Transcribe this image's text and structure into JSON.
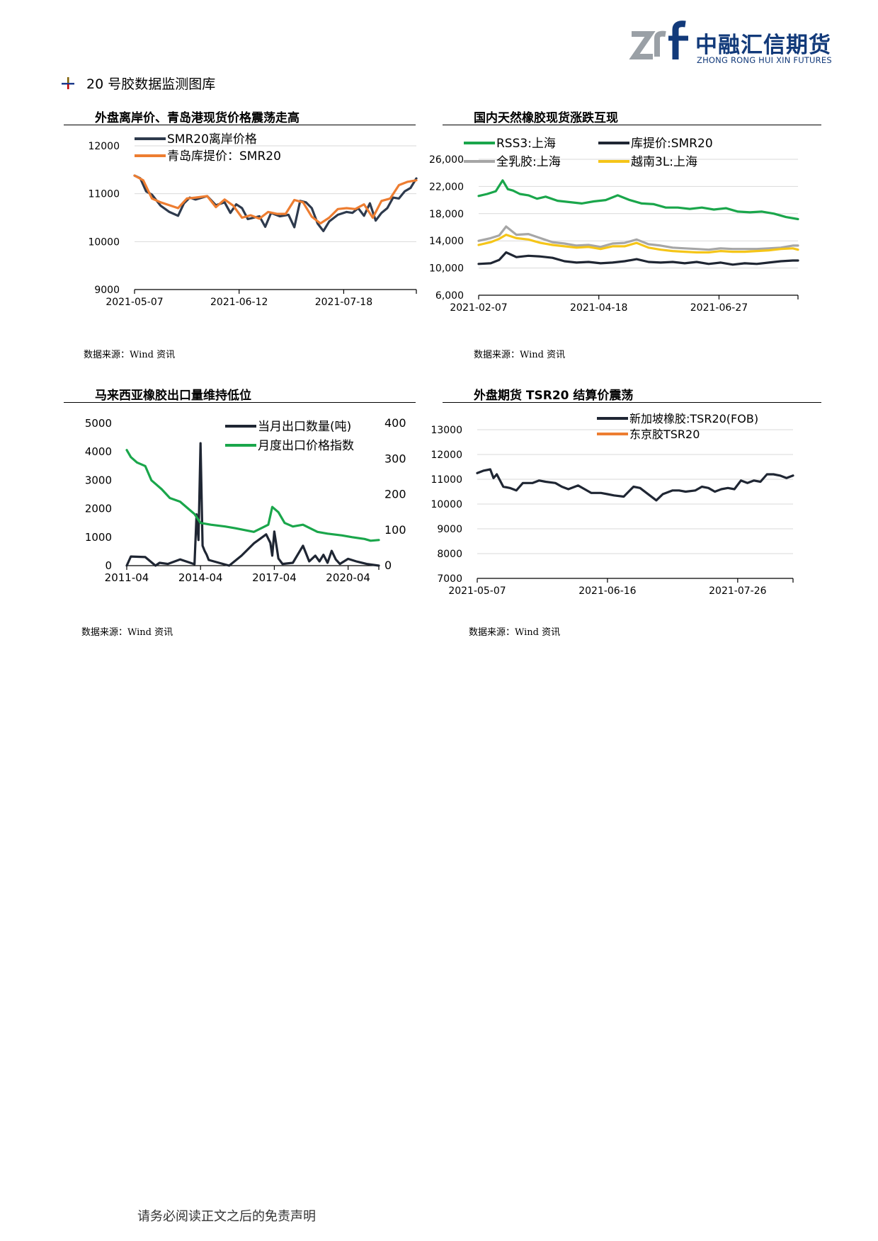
{
  "logo": {
    "mark": "zrf",
    "cn": "中融汇信期货",
    "en": "ZHONG RONG HUI XIN FUTURES"
  },
  "section": {
    "title": "20 号胶数据监测图库"
  },
  "footer": {
    "text": "请务必阅读正文之后的免责声明"
  },
  "panels": [
    {
      "title": "外盘离岸价、青岛港现货价格震荡走高",
      "source": "数据来源：Wind 资讯"
    },
    {
      "title": "国内天然橡胶现货涨跌互现",
      "source": "数据来源：Wind 资讯"
    },
    {
      "title": "马来西亚橡胶出口量维持低位",
      "source": "数据来源：Wind 资讯"
    },
    {
      "title": "外盘期货 TSR20 结算价震荡",
      "source": "数据来源：Wind 资讯"
    }
  ],
  "chart_data": [
    {
      "type": "line",
      "x_ticks": [
        "2021-05-07",
        "2021-06-12",
        "2021-07-18"
      ],
      "x_start": "2021-05-07",
      "x_end": "2021-08-12",
      "ylim": [
        9000,
        12000
      ],
      "y_ticks": [
        9000,
        10000,
        11000,
        12000
      ],
      "grid": true,
      "legend": "top-left",
      "series": [
        {
          "name": "SMR20离岸价格",
          "color": "#2e3a4d",
          "dates": [
            "2021-05-07",
            "2021-05-09",
            "2021-05-11",
            "2021-05-13",
            "2021-05-16",
            "2021-05-19",
            "2021-05-22",
            "2021-05-24",
            "2021-05-26",
            "2021-05-28",
            "2021-06-01",
            "2021-06-04",
            "2021-06-07",
            "2021-06-09",
            "2021-06-11",
            "2021-06-13",
            "2021-06-15",
            "2021-06-17",
            "2021-06-19",
            "2021-06-21",
            "2021-06-23",
            "2021-06-26",
            "2021-06-29",
            "2021-07-01",
            "2021-07-03",
            "2021-07-05",
            "2021-07-07",
            "2021-07-09",
            "2021-07-11",
            "2021-07-13",
            "2021-07-16",
            "2021-07-19",
            "2021-07-21",
            "2021-07-23",
            "2021-07-25",
            "2021-07-27",
            "2021-07-29",
            "2021-07-31",
            "2021-08-02",
            "2021-08-04",
            "2021-08-06",
            "2021-08-08",
            "2021-08-10",
            "2021-08-12"
          ],
          "values": [
            11380,
            11320,
            11050,
            10980,
            10750,
            10620,
            10540,
            10800,
            10920,
            10880,
            10950,
            10760,
            10820,
            10600,
            10780,
            10700,
            10470,
            10500,
            10530,
            10310,
            10600,
            10530,
            10560,
            10300,
            10850,
            10820,
            10700,
            10380,
            10220,
            10420,
            10560,
            10620,
            10600,
            10700,
            10540,
            10800,
            10440,
            10600,
            10700,
            10920,
            10900,
            11050,
            11120,
            11320
          ]
        },
        {
          "name": "青岛库提价：SMR20",
          "color": "#ed7d31",
          "dates": [
            "2021-05-07",
            "2021-05-10",
            "2021-05-13",
            "2021-05-16",
            "2021-05-19",
            "2021-05-22",
            "2021-05-25",
            "2021-05-28",
            "2021-06-01",
            "2021-06-04",
            "2021-06-07",
            "2021-06-10",
            "2021-06-13",
            "2021-06-16",
            "2021-06-19",
            "2021-06-22",
            "2021-06-25",
            "2021-06-28",
            "2021-07-01",
            "2021-07-04",
            "2021-07-07",
            "2021-07-10",
            "2021-07-13",
            "2021-07-16",
            "2021-07-19",
            "2021-07-22",
            "2021-07-25",
            "2021-07-28",
            "2021-07-31",
            "2021-08-03",
            "2021-08-06",
            "2021-08-09",
            "2021-08-12"
          ],
          "values": [
            11380,
            11280,
            10900,
            10820,
            10760,
            10700,
            10900,
            10920,
            10950,
            10720,
            10880,
            10750,
            10500,
            10550,
            10480,
            10620,
            10580,
            10580,
            10870,
            10820,
            10520,
            10380,
            10500,
            10680,
            10700,
            10680,
            10780,
            10500,
            10850,
            10900,
            11180,
            11250,
            11280
          ]
        }
      ]
    },
    {
      "type": "line",
      "x_ticks": [
        "2021-02-07",
        "2021-04-18",
        "2021-06-27"
      ],
      "x_start": "2021-02-07",
      "x_end": "2021-08-12",
      "ylim": [
        6000,
        26000
      ],
      "y_ticks": [
        6000,
        10000,
        14000,
        18000,
        22000,
        26000
      ],
      "grid": true,
      "legend": "top",
      "series": [
        {
          "name": "RSS3:上海",
          "color": "#1aa64b",
          "dates": [
            "2021-02-07",
            "2021-02-12",
            "2021-02-17",
            "2021-02-21",
            "2021-02-24",
            "2021-02-27",
            "2021-03-03",
            "2021-03-08",
            "2021-03-13",
            "2021-03-18",
            "2021-03-25",
            "2021-04-01",
            "2021-04-08",
            "2021-04-15",
            "2021-04-22",
            "2021-04-29",
            "2021-05-06",
            "2021-05-13",
            "2021-05-20",
            "2021-05-27",
            "2021-06-03",
            "2021-06-10",
            "2021-06-17",
            "2021-06-24",
            "2021-07-01",
            "2021-07-08",
            "2021-07-15",
            "2021-07-22",
            "2021-07-29",
            "2021-08-05",
            "2021-08-12"
          ],
          "values": [
            20600,
            20900,
            21300,
            22900,
            21600,
            21400,
            20900,
            20700,
            20200,
            20500,
            19900,
            19700,
            19500,
            19800,
            20000,
            20700,
            20000,
            19500,
            19400,
            18900,
            18900,
            18700,
            18900,
            18600,
            18800,
            18300,
            18200,
            18300,
            18000,
            17500,
            17200
          ]
        },
        {
          "name": "库提价:SMR20",
          "color": "#1f2633",
          "dates": [
            "2021-02-07",
            "2021-02-14",
            "2021-02-19",
            "2021-02-23",
            "2021-03-01",
            "2021-03-08",
            "2021-03-15",
            "2021-03-22",
            "2021-03-29",
            "2021-04-05",
            "2021-04-12",
            "2021-04-19",
            "2021-04-26",
            "2021-05-03",
            "2021-05-10",
            "2021-05-17",
            "2021-05-24",
            "2021-05-31",
            "2021-06-07",
            "2021-06-14",
            "2021-06-21",
            "2021-06-28",
            "2021-07-05",
            "2021-07-12",
            "2021-07-19",
            "2021-07-26",
            "2021-08-02",
            "2021-08-09",
            "2021-08-12"
          ],
          "values": [
            10600,
            10700,
            11200,
            12300,
            11600,
            11800,
            11700,
            11500,
            11000,
            10800,
            10900,
            10700,
            10800,
            11000,
            11300,
            10900,
            10800,
            10900,
            10700,
            10900,
            10600,
            10800,
            10500,
            10700,
            10600,
            10800,
            11000,
            11100,
            11100
          ]
        },
        {
          "name": "全乳胶:上海",
          "color": "#a6a6a6",
          "dates": [
            "2021-02-07",
            "2021-02-14",
            "2021-02-19",
            "2021-02-23",
            "2021-03-01",
            "2021-03-08",
            "2021-03-15",
            "2021-03-22",
            "2021-03-29",
            "2021-04-05",
            "2021-04-12",
            "2021-04-19",
            "2021-04-26",
            "2021-05-03",
            "2021-05-10",
            "2021-05-17",
            "2021-05-24",
            "2021-05-31",
            "2021-06-07",
            "2021-06-14",
            "2021-06-21",
            "2021-06-28",
            "2021-07-05",
            "2021-07-12",
            "2021-07-19",
            "2021-07-26",
            "2021-08-02",
            "2021-08-09",
            "2021-08-12"
          ],
          "values": [
            14000,
            14400,
            14800,
            16100,
            14900,
            15000,
            14400,
            13800,
            13600,
            13300,
            13400,
            13100,
            13600,
            13700,
            14200,
            13500,
            13300,
            13000,
            12900,
            12800,
            12700,
            12900,
            12800,
            12800,
            12800,
            12900,
            13000,
            13300,
            13300
          ]
        },
        {
          "name": "越南3L:上海",
          "color": "#f5c518",
          "dates": [
            "2021-02-07",
            "2021-02-14",
            "2021-02-19",
            "2021-02-23",
            "2021-03-01",
            "2021-03-08",
            "2021-03-15",
            "2021-03-22",
            "2021-03-29",
            "2021-04-05",
            "2021-04-12",
            "2021-04-19",
            "2021-04-26",
            "2021-05-03",
            "2021-05-10",
            "2021-05-17",
            "2021-05-24",
            "2021-05-31",
            "2021-06-07",
            "2021-06-14",
            "2021-06-21",
            "2021-06-28",
            "2021-07-05",
            "2021-07-12",
            "2021-07-19",
            "2021-07-26",
            "2021-08-02",
            "2021-08-09",
            "2021-08-12"
          ],
          "values": [
            13400,
            13800,
            14300,
            14900,
            14400,
            14200,
            13700,
            13400,
            13200,
            13000,
            13100,
            12800,
            13200,
            13200,
            13700,
            13000,
            12700,
            12500,
            12400,
            12300,
            12300,
            12500,
            12400,
            12400,
            12500,
            12600,
            12800,
            12900,
            12700
          ]
        }
      ]
    },
    {
      "type": "line",
      "x_ticks": [
        "2011-04",
        "2014-04",
        "2017-04",
        "2020-04"
      ],
      "x_start": "2011-04",
      "x_end": "2021-07",
      "ylim_left": [
        0,
        5000
      ],
      "y_ticks_left": [
        0,
        1000,
        2000,
        3000,
        4000,
        5000
      ],
      "ylim_right": [
        0,
        400
      ],
      "y_ticks_right": [
        0,
        100,
        200,
        300,
        400
      ],
      "grid": false,
      "legend": "top-right",
      "series": [
        {
          "name": "当月出口数量(吨)",
          "color": "#1f2633",
          "axis": "left",
          "dates": [
            "2011-04",
            "2011-06",
            "2012-01",
            "2012-06",
            "2012-08",
            "2012-12",
            "2013-06",
            "2014-01",
            "2014-02",
            "2014-03",
            "2014-04",
            "2014-05",
            "2014-06",
            "2014-07",
            "2014-08",
            "2015-06",
            "2015-12",
            "2016-06",
            "2016-12",
            "2017-02",
            "2017-03",
            "2017-04",
            "2017-06",
            "2017-08",
            "2018-01",
            "2018-06",
            "2018-09",
            "2018-12",
            "2019-02",
            "2019-04",
            "2019-06",
            "2019-08",
            "2019-10",
            "2019-12",
            "2020-04",
            "2020-08",
            "2021-01",
            "2021-07"
          ],
          "values": [
            0,
            320,
            300,
            0,
            100,
            60,
            220,
            50,
            1800,
            900,
            4300,
            700,
            520,
            380,
            200,
            0,
            350,
            780,
            1100,
            800,
            350,
            1200,
            250,
            60,
            100,
            700,
            150,
            350,
            150,
            380,
            100,
            520,
            220,
            60,
            240,
            150,
            60,
            0
          ]
        },
        {
          "name": "月度出口价格指数",
          "color": "#1aa64b",
          "axis": "right",
          "dates": [
            "2011-04",
            "2011-06",
            "2011-09",
            "2012-01",
            "2012-04",
            "2012-06",
            "2012-09",
            "2013-01",
            "2013-06",
            "2014-01",
            "2014-04",
            "2014-09",
            "2015-04",
            "2015-09",
            "2016-06",
            "2017-01",
            "2017-03",
            "2017-06",
            "2017-09",
            "2018-01",
            "2018-06",
            "2019-01",
            "2019-06",
            "2020-01",
            "2020-06",
            "2020-12",
            "2021-03",
            "2021-07"
          ],
          "values": [
            325,
            305,
            290,
            280,
            240,
            230,
            215,
            190,
            180,
            145,
            120,
            115,
            110,
            105,
            95,
            115,
            165,
            150,
            120,
            110,
            115,
            95,
            90,
            85,
            80,
            75,
            70,
            72
          ]
        }
      ]
    },
    {
      "type": "line",
      "x_ticks": [
        "2021-05-07",
        "2021-06-16",
        "2021-07-26"
      ],
      "x_start": "2021-05-07",
      "x_end": "2021-08-12",
      "ylim": [
        7000,
        13000
      ],
      "y_ticks": [
        7000,
        8000,
        9000,
        10000,
        11000,
        12000,
        13000
      ],
      "grid": true,
      "legend": "top",
      "series": [
        {
          "name": "新加坡橡胶:TSR20(FOB)",
          "color": "#1f2633",
          "dates": [
            "2021-05-07",
            "2021-05-09",
            "2021-05-11",
            "2021-05-12",
            "2021-05-13",
            "2021-05-15",
            "2021-05-17",
            "2021-05-19",
            "2021-05-21",
            "2021-05-24",
            "2021-05-26",
            "2021-05-28",
            "2021-05-31",
            "2021-06-02",
            "2021-06-04",
            "2021-06-07",
            "2021-06-09",
            "2021-06-11",
            "2021-06-14",
            "2021-06-16",
            "2021-06-18",
            "2021-06-21",
            "2021-06-24",
            "2021-06-26",
            "2021-06-29",
            "2021-07-01",
            "2021-07-03",
            "2021-07-06",
            "2021-07-08",
            "2021-07-10",
            "2021-07-13",
            "2021-07-15",
            "2021-07-17",
            "2021-07-19",
            "2021-07-21",
            "2021-07-23",
            "2021-07-25",
            "2021-07-27",
            "2021-07-29",
            "2021-07-31",
            "2021-08-02",
            "2021-08-04",
            "2021-08-06",
            "2021-08-08",
            "2021-08-10",
            "2021-08-12"
          ],
          "values": [
            11250,
            11350,
            11400,
            11050,
            11200,
            10700,
            10650,
            10550,
            10850,
            10850,
            10950,
            10900,
            10850,
            10700,
            10600,
            10750,
            10600,
            10450,
            10450,
            10400,
            10350,
            10300,
            10700,
            10650,
            10350,
            10150,
            10400,
            10550,
            10550,
            10500,
            10550,
            10700,
            10650,
            10500,
            10600,
            10650,
            10600,
            10950,
            10850,
            10950,
            10900,
            11200,
            11200,
            11150,
            11050,
            11150
          ]
        },
        {
          "name": "东京胶TSR20",
          "color": "#ed7d31",
          "dates": [],
          "values": []
        }
      ]
    }
  ]
}
